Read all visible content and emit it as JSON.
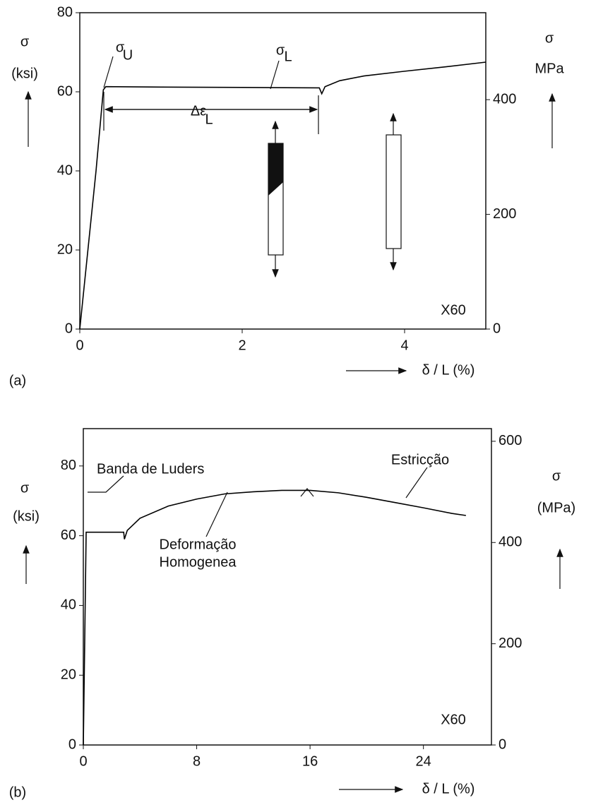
{
  "chart_data": [
    {
      "type": "line",
      "panel_label": "(a)",
      "ylabel": [
        "σ",
        "(ksi)"
      ],
      "y2label": [
        "σ",
        "MPa"
      ],
      "xlabel": "δ / L (%)",
      "annotations": [
        "σ",
        "U",
        "σ",
        "L",
        "Δε",
        "L",
        "X60"
      ],
      "x": [
        0,
        0.1,
        0.2,
        0.29,
        0.32,
        1,
        2,
        2.95,
        2.98,
        3.02,
        3.2,
        3.5,
        4,
        4.5,
        5
      ],
      "series": [
        {
          "color": "#000000",
          "values": [
            0,
            20,
            40,
            60.5,
            61.3,
            61.2,
            61.1,
            61,
            59.5,
            61.3,
            62.8,
            64,
            65.2,
            66.3,
            67.5
          ]
        }
      ],
      "xlim": [
        0,
        5
      ],
      "xticks": [
        0,
        2,
        4
      ],
      "ylim": [
        0,
        80
      ],
      "yticks": [
        0,
        20,
        40,
        60,
        80
      ],
      "y2lim": [
        0,
        551.6
      ],
      "y2ticks": [
        0,
        200,
        400
      ]
    },
    {
      "type": "line",
      "panel_label": "(b)",
      "ylabel": [
        "σ",
        "(ksi)"
      ],
      "y2label": [
        "σ",
        "(MPa)"
      ],
      "xlabel": "δ / L (%)",
      "annotations": [
        "Banda de Luders",
        "Estricção",
        "Deformação",
        "Homogenea",
        "X60"
      ],
      "x": [
        0,
        0.1,
        0.2,
        1,
        2.85,
        2.9,
        3.1,
        4,
        6,
        8,
        10,
        12,
        14,
        16,
        18,
        20,
        22,
        24,
        26,
        27
      ],
      "series": [
        {
          "color": "#000000",
          "values": [
            0,
            30,
            61,
            61,
            61,
            59,
            61.5,
            65,
            68.5,
            70.5,
            72,
            72.6,
            73,
            73,
            72.3,
            71,
            69.5,
            68,
            66.4,
            65.8
          ]
        }
      ],
      "xlim": [
        0,
        28.8
      ],
      "xticks": [
        0,
        8,
        16,
        24
      ],
      "ylim": [
        0,
        90.7
      ],
      "yticks": [
        0,
        20,
        40,
        60,
        80
      ],
      "y2lim": [
        0,
        625
      ],
      "y2ticks": [
        0,
        200,
        400,
        600
      ]
    }
  ]
}
